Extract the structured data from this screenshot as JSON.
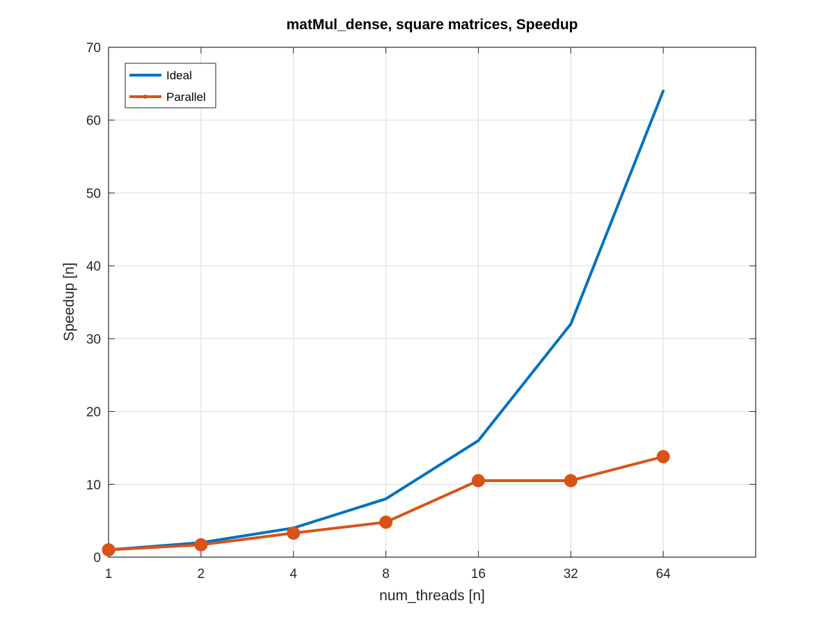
{
  "chart_data": {
    "type": "line",
    "title": "matMul_dense, square matrices, Speedup",
    "xlabel": "num_threads [n]",
    "ylabel": "Speedup [n]",
    "x_scale": "log2",
    "x": [
      1,
      2,
      4,
      8,
      16,
      32,
      64
    ],
    "x_tick_labels": [
      "1",
      "2",
      "4",
      "8",
      "16",
      "32",
      "64"
    ],
    "xlim": [
      1,
      128
    ],
    "ylim": [
      0,
      70
    ],
    "y_ticks": [
      0,
      10,
      20,
      30,
      40,
      50,
      60,
      70
    ],
    "grid": true,
    "legend_position": "top-left",
    "series": [
      {
        "name": "Ideal",
        "values": [
          1,
          2,
          4,
          8,
          16,
          32,
          64
        ],
        "color": "#0072BD",
        "marker": "none"
      },
      {
        "name": "Parallel",
        "values": [
          1.0,
          1.7,
          3.3,
          4.8,
          10.5,
          10.5,
          13.8
        ],
        "color": "#D95319",
        "marker": "circle"
      }
    ]
  }
}
